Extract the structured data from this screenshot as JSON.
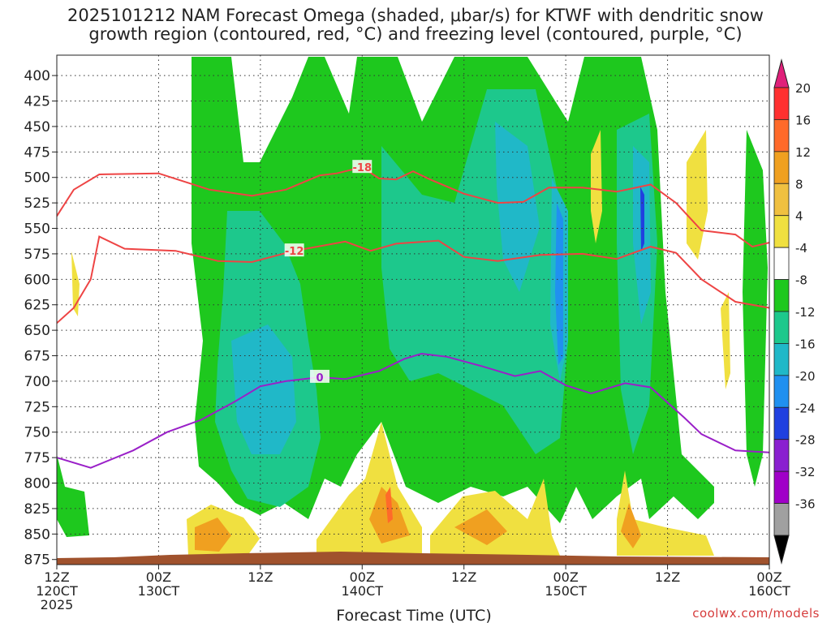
{
  "title": {
    "line1": "2025101212 NAM Forecast Omega (shaded, μbar/s) for KTWF with dendritic snow",
    "line2": "growth region (contoured, red, °C) and freezing level (contoured, purple, °C)"
  },
  "credit": "coolwx.com/models",
  "chart_data": {
    "type": "heatmap",
    "xlabel": "Forecast Time (UTC)",
    "x_ticks": [
      {
        "hour": 0,
        "line1": "12Z",
        "line2": "120CT",
        "line3": "2025"
      },
      {
        "hour": 12,
        "line1": "00Z",
        "line2": "130CT",
        "line3": ""
      },
      {
        "hour": 24,
        "line1": "12Z",
        "line2": "",
        "line3": ""
      },
      {
        "hour": 36,
        "line1": "00Z",
        "line2": "140CT",
        "line3": ""
      },
      {
        "hour": 48,
        "line1": "12Z",
        "line2": "",
        "line3": ""
      },
      {
        "hour": 60,
        "line1": "00Z",
        "line2": "150CT",
        "line3": ""
      },
      {
        "hour": 72,
        "line1": "12Z",
        "line2": "",
        "line3": ""
      },
      {
        "hour": 84,
        "line1": "00Z",
        "line2": "160CT",
        "line3": ""
      }
    ],
    "xlim": [
      0,
      84
    ],
    "y_levels_mb": [
      400,
      425,
      450,
      475,
      500,
      525,
      550,
      575,
      600,
      625,
      650,
      675,
      700,
      725,
      750,
      775,
      800,
      825,
      850,
      875
    ],
    "ylim": [
      380,
      880
    ],
    "colorbar": {
      "labels": [
        "20",
        "16",
        "12",
        "8",
        "4",
        "-4",
        "-8",
        "-12",
        "-16",
        "-20",
        "-24",
        "-28",
        "-32",
        "-36"
      ],
      "colors": [
        "#ff3030",
        "#ff6a2a",
        "#f0a020",
        "#f0c040",
        "#f0e040",
        "#ffffff",
        "#1ec81e",
        "#1dc88c",
        "#20b8c8",
        "#2090f0",
        "#2040e0",
        "#8a20d0",
        "#a000c8",
        "#a0a0a0"
      ]
    },
    "series": [
      {
        "name": "-18",
        "color": "#ee4444",
        "points": [
          [
            0,
            538
          ],
          [
            2,
            512
          ],
          [
            5,
            497
          ],
          [
            12,
            496
          ],
          [
            18,
            512
          ],
          [
            23,
            518
          ],
          [
            27,
            512
          ],
          [
            31,
            498
          ],
          [
            33,
            496
          ],
          [
            36,
            490
          ],
          [
            38,
            501
          ],
          [
            40,
            502
          ],
          [
            42,
            494
          ],
          [
            44,
            502
          ],
          [
            48,
            516
          ],
          [
            52,
            525
          ],
          [
            55,
            524
          ],
          [
            58,
            510
          ],
          [
            62,
            510
          ],
          [
            66,
            514
          ],
          [
            70,
            507
          ],
          [
            73,
            525
          ],
          [
            76,
            552
          ],
          [
            80,
            556
          ],
          [
            82,
            568
          ],
          [
            84,
            564
          ]
        ]
      },
      {
        "name": "-12",
        "color": "#ee4444",
        "points": [
          [
            0,
            643
          ],
          [
            2,
            628
          ],
          [
            4,
            600
          ],
          [
            5,
            558
          ],
          [
            8,
            570
          ],
          [
            14,
            572
          ],
          [
            19,
            582
          ],
          [
            23,
            583
          ],
          [
            28,
            572
          ],
          [
            34,
            563
          ],
          [
            37,
            572
          ],
          [
            40,
            565
          ],
          [
            45,
            562
          ],
          [
            48,
            578
          ],
          [
            52,
            582
          ],
          [
            57,
            576
          ],
          [
            62,
            575
          ],
          [
            66,
            580
          ],
          [
            70,
            568
          ],
          [
            73,
            574
          ],
          [
            76,
            600
          ],
          [
            80,
            622
          ],
          [
            84,
            628
          ]
        ]
      },
      {
        "name": "0",
        "color": "#9a20c8",
        "points": [
          [
            0,
            775
          ],
          [
            4,
            785
          ],
          [
            9,
            768
          ],
          [
            13,
            750
          ],
          [
            17,
            738
          ],
          [
            21,
            720
          ],
          [
            24,
            705
          ],
          [
            27,
            700
          ],
          [
            31,
            696
          ],
          [
            34,
            698
          ],
          [
            38,
            690
          ],
          [
            41,
            678
          ],
          [
            43,
            673
          ],
          [
            46,
            676
          ],
          [
            50,
            685
          ],
          [
            54,
            695
          ],
          [
            57,
            690
          ],
          [
            60,
            704
          ],
          [
            63,
            712
          ],
          [
            67,
            702
          ],
          [
            70,
            706
          ],
          [
            74,
            736
          ],
          [
            76,
            752
          ],
          [
            80,
            768
          ],
          [
            84,
            770
          ]
        ]
      }
    ],
    "terrain_color": "#a0522d",
    "grid": true
  }
}
